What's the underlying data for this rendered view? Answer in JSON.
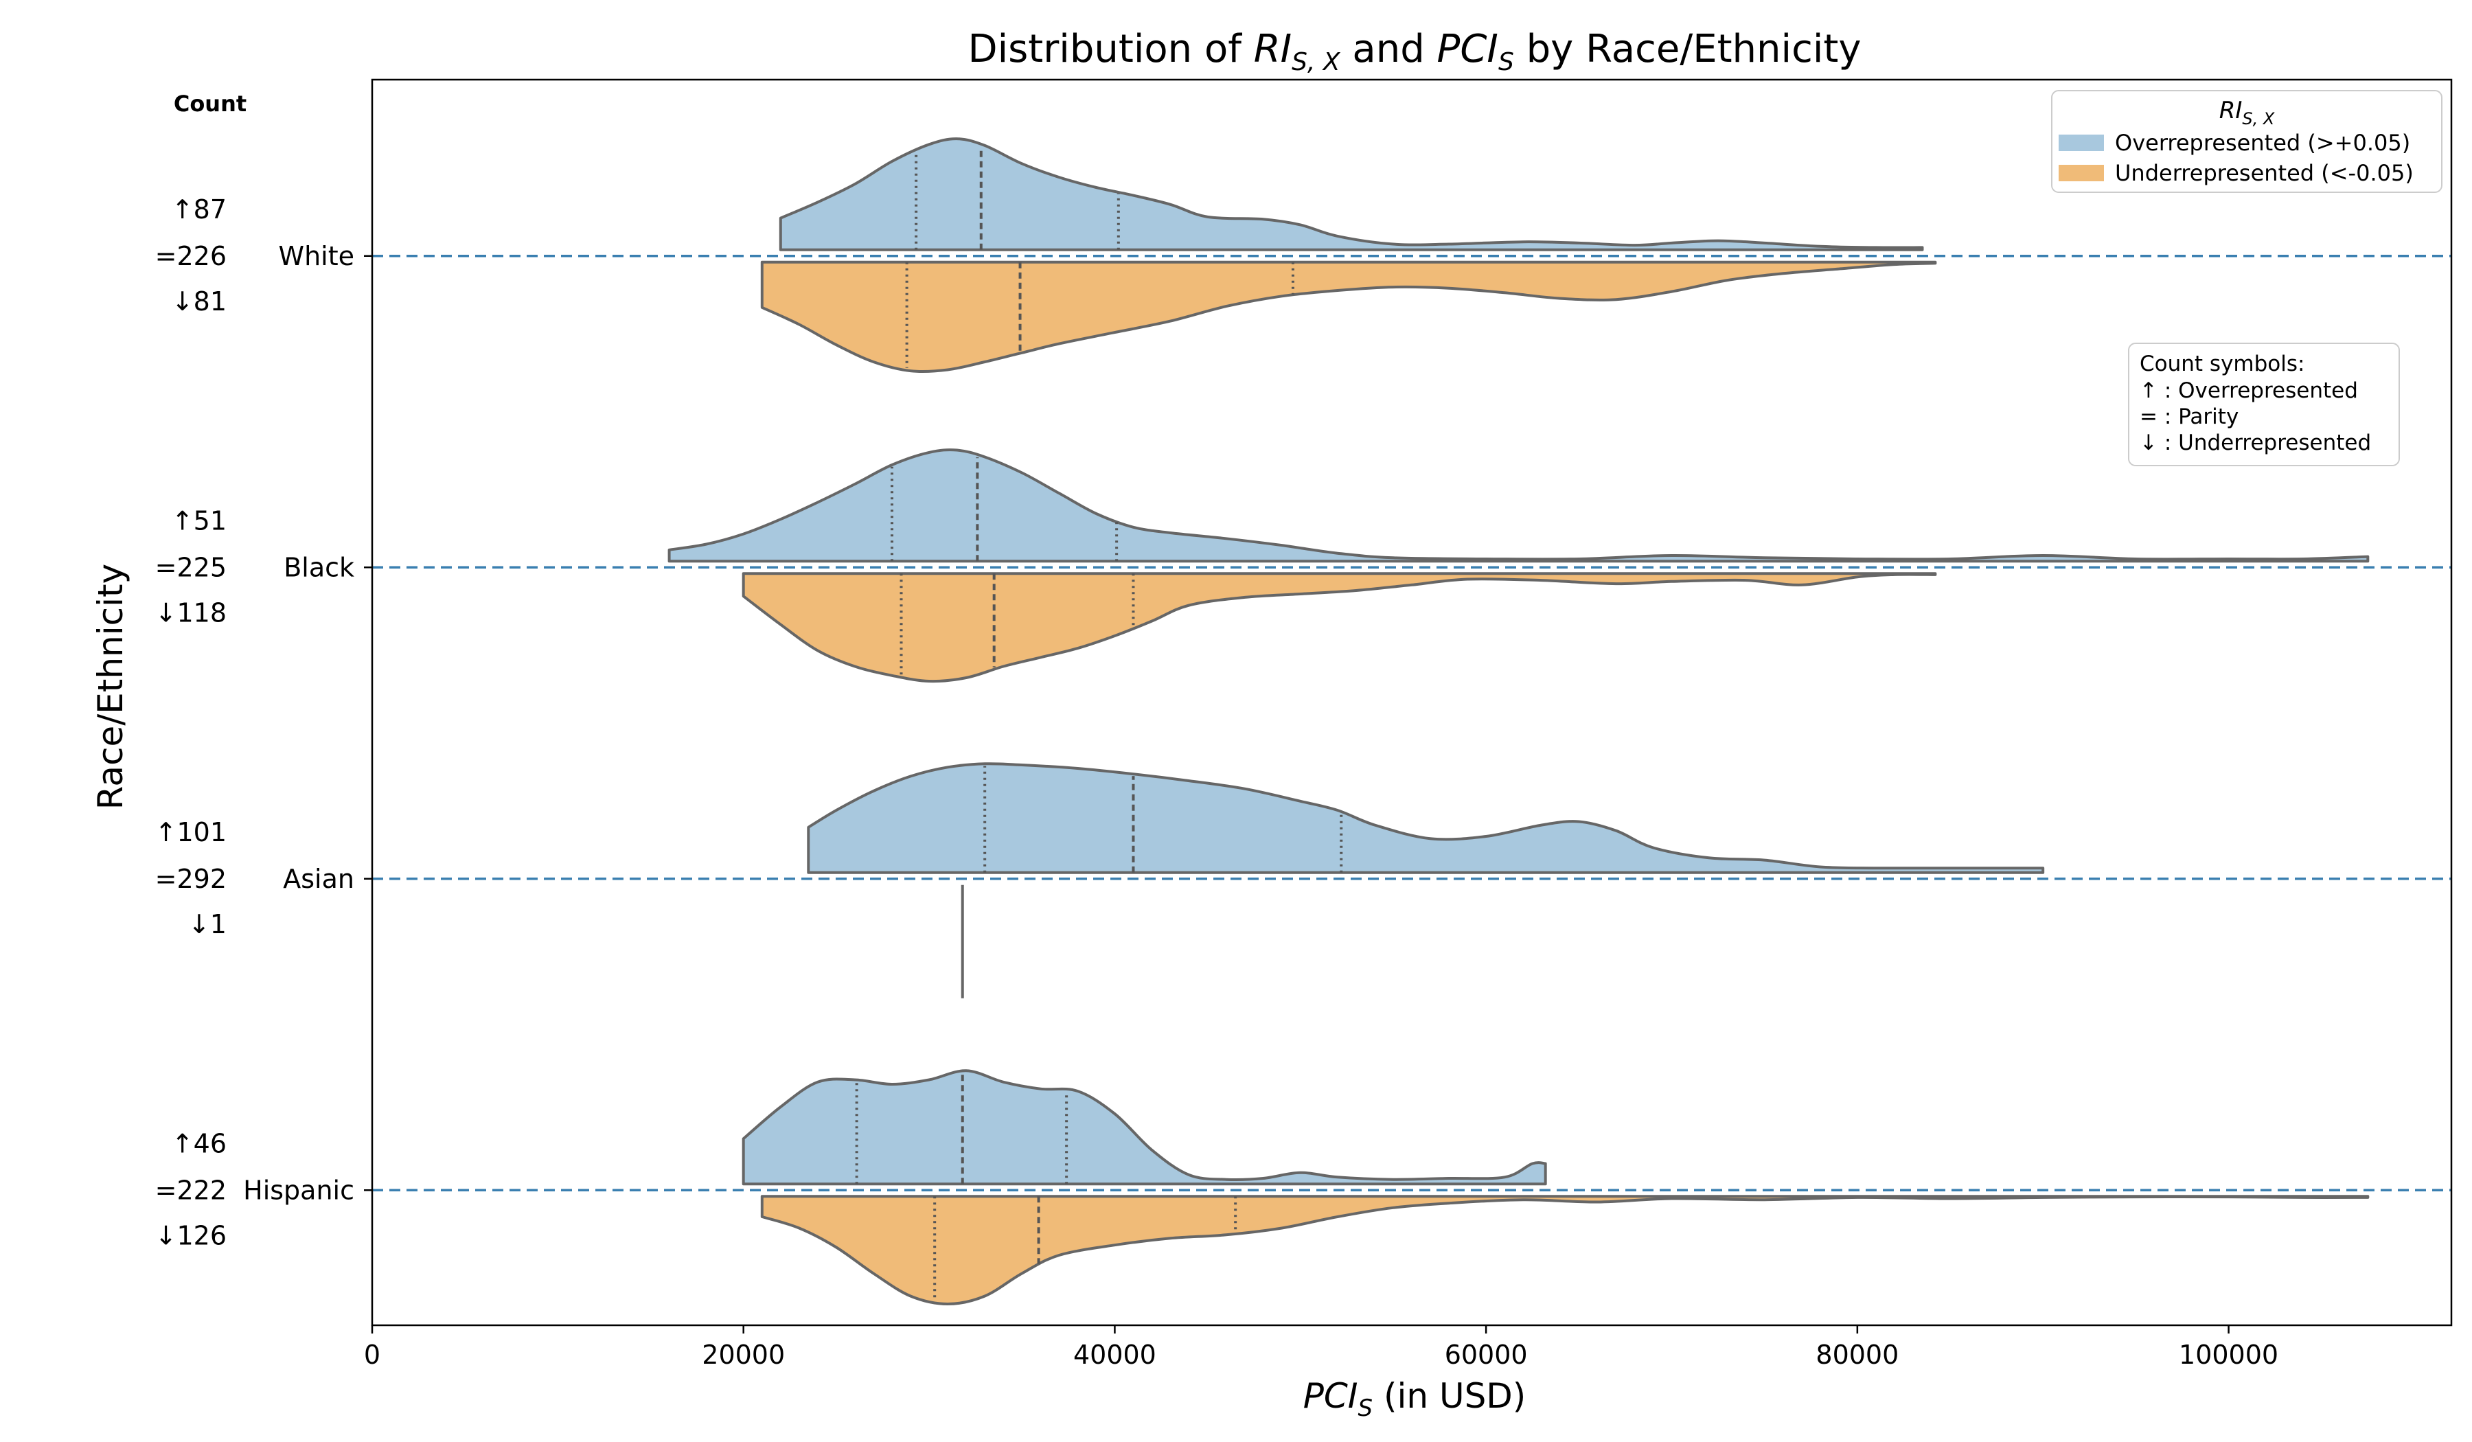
{
  "chart_data": {
    "type": "violin",
    "title": "Distribution of RI_S,X and PCI_S by Race/Ethnicity",
    "title_parts": {
      "prefix": "Distribution of ",
      "ri_base": "RI",
      "ri_sub": "S, X",
      "mid": " and ",
      "pci_base": "PCI",
      "pci_sub": "S",
      "suffix": " by Race/Ethnicity"
    },
    "xlabel": {
      "base": "PCI",
      "sub": "S",
      "rest": " (in USD)"
    },
    "ylabel": "Race/Ethnicity",
    "xlim": [
      0,
      112000
    ],
    "xticks": [
      "0",
      "20000",
      "40000",
      "60000",
      "80000",
      "100000"
    ],
    "count_header": "Count",
    "categories": [
      "White",
      "Black",
      "Asian",
      "Hispanic"
    ],
    "counts": [
      {
        "up": "↑87",
        "eq": "=226",
        "down": "↓81"
      },
      {
        "up": "↑51",
        "eq": "=225",
        "down": "↓118"
      },
      {
        "up": "↑101",
        "eq": "=292",
        "down": "↓1"
      },
      {
        "up": "↑46",
        "eq": "=222",
        "down": "↓126"
      }
    ],
    "legend": {
      "title_base": "RI",
      "title_sub": "S, X",
      "entries": [
        {
          "label": "Overrepresented (>+0.05)",
          "color": "#a8c8de"
        },
        {
          "label": "Underrepresented (<-0.05)",
          "color": "#f0bb78"
        }
      ],
      "placement": "top-right"
    },
    "count_legend": {
      "title": "Count symbols:",
      "lines": [
        "↑ : Overrepresented",
        "= : Parity",
        "↓ : Underrepresented"
      ],
      "placement": "right"
    },
    "series": [
      {
        "name": "Overrepresented (>+0.05)",
        "color": "#a8c8de",
        "side": "upper",
        "violins": [
          {
            "category": "White",
            "range": [
              22000,
              83500
            ],
            "profile": [
              [
                22000,
                0.28
              ],
              [
                24000,
                0.42
              ],
              [
                26000,
                0.58
              ],
              [
                28000,
                0.78
              ],
              [
                30000,
                0.93
              ],
              [
                31500,
                0.98
              ],
              [
                33000,
                0.92
              ],
              [
                35000,
                0.76
              ],
              [
                37000,
                0.64
              ],
              [
                39000,
                0.55
              ],
              [
                41000,
                0.48
              ],
              [
                43000,
                0.4
              ],
              [
                45000,
                0.29
              ],
              [
                48000,
                0.27
              ],
              [
                50000,
                0.22
              ],
              [
                52000,
                0.12
              ],
              [
                55000,
                0.05
              ],
              [
                58000,
                0.05
              ],
              [
                62000,
                0.07
              ],
              [
                65000,
                0.06
              ],
              [
                68000,
                0.04
              ],
              [
                70000,
                0.06
              ],
              [
                72500,
                0.08
              ],
              [
                75000,
                0.06
              ],
              [
                78000,
                0.03
              ],
              [
                81000,
                0.02
              ],
              [
                83500,
                0.02
              ]
            ],
            "quartiles": [
              29300,
              32800,
              40200
            ]
          },
          {
            "category": "Black",
            "range": [
              16000,
              107500
            ],
            "profile": [
              [
                16000,
                0.1
              ],
              [
                18000,
                0.15
              ],
              [
                20000,
                0.24
              ],
              [
                22000,
                0.37
              ],
              [
                24000,
                0.52
              ],
              [
                26000,
                0.68
              ],
              [
                28000,
                0.85
              ],
              [
                30000,
                0.96
              ],
              [
                31500,
                0.98
              ],
              [
                33000,
                0.92
              ],
              [
                35000,
                0.78
              ],
              [
                37000,
                0.6
              ],
              [
                39000,
                0.42
              ],
              [
                41000,
                0.3
              ],
              [
                43000,
                0.25
              ],
              [
                46000,
                0.2
              ],
              [
                49000,
                0.14
              ],
              [
                52000,
                0.07
              ],
              [
                55000,
                0.03
              ],
              [
                60000,
                0.02
              ],
              [
                65000,
                0.02
              ],
              [
                70000,
                0.05
              ],
              [
                75000,
                0.03
              ],
              [
                80000,
                0.02
              ],
              [
                85000,
                0.02
              ],
              [
                90000,
                0.05
              ],
              [
                95000,
                0.02
              ],
              [
                100000,
                0.02
              ],
              [
                104000,
                0.02
              ],
              [
                107500,
                0.04
              ]
            ],
            "quartiles": [
              28000,
              32600,
              40100
            ]
          },
          {
            "category": "Asian",
            "range": [
              23500,
              90000
            ],
            "profile": [
              [
                23500,
                0.4
              ],
              [
                25000,
                0.55
              ],
              [
                27000,
                0.72
              ],
              [
                29000,
                0.85
              ],
              [
                31000,
                0.93
              ],
              [
                33000,
                0.96
              ],
              [
                35000,
                0.95
              ],
              [
                38000,
                0.92
              ],
              [
                41000,
                0.87
              ],
              [
                44000,
                0.81
              ],
              [
                47000,
                0.74
              ],
              [
                50000,
                0.63
              ],
              [
                52000,
                0.55
              ],
              [
                54000,
                0.42
              ],
              [
                57000,
                0.3
              ],
              [
                60000,
                0.32
              ],
              [
                63000,
                0.42
              ],
              [
                65000,
                0.45
              ],
              [
                67000,
                0.37
              ],
              [
                69000,
                0.22
              ],
              [
                72000,
                0.13
              ],
              [
                75000,
                0.11
              ],
              [
                78000,
                0.05
              ],
              [
                81000,
                0.04
              ],
              [
                85000,
                0.04
              ],
              [
                90000,
                0.04
              ]
            ],
            "quartiles": [
              33000,
              41000,
              52200
            ]
          },
          {
            "category": "Hispanic",
            "range": [
              20000,
              63200
            ],
            "profile": [
              [
                20000,
                0.4
              ],
              [
                22000,
                0.68
              ],
              [
                24000,
                0.9
              ],
              [
                26000,
                0.92
              ],
              [
                28000,
                0.88
              ],
              [
                30000,
                0.92
              ],
              [
                32000,
                1.0
              ],
              [
                34000,
                0.9
              ],
              [
                36000,
                0.84
              ],
              [
                38000,
                0.82
              ],
              [
                40000,
                0.62
              ],
              [
                42000,
                0.3
              ],
              [
                44000,
                0.08
              ],
              [
                46000,
                0.04
              ],
              [
                48000,
                0.05
              ],
              [
                50000,
                0.1
              ],
              [
                52000,
                0.06
              ],
              [
                55000,
                0.04
              ],
              [
                58000,
                0.05
              ],
              [
                61000,
                0.06
              ],
              [
                62500,
                0.18
              ],
              [
                63200,
                0.18
              ]
            ],
            "quartiles": [
              26100,
              31800,
              37400
            ]
          }
        ]
      },
      {
        "name": "Underrepresented (<-0.05)",
        "color": "#f0bb78",
        "side": "lower",
        "violins": [
          {
            "category": "White",
            "range": [
              21000,
              84200
            ],
            "profile": [
              [
                21000,
                0.4
              ],
              [
                23000,
                0.55
              ],
              [
                25000,
                0.73
              ],
              [
                27000,
                0.88
              ],
              [
                29000,
                0.96
              ],
              [
                31000,
                0.95
              ],
              [
                33000,
                0.88
              ],
              [
                35000,
                0.8
              ],
              [
                37000,
                0.72
              ],
              [
                40000,
                0.62
              ],
              [
                43000,
                0.52
              ],
              [
                46000,
                0.39
              ],
              [
                49000,
                0.3
              ],
              [
                52000,
                0.25
              ],
              [
                55000,
                0.22
              ],
              [
                58000,
                0.23
              ],
              [
                61000,
                0.27
              ],
              [
                64000,
                0.32
              ],
              [
                67000,
                0.33
              ],
              [
                70000,
                0.26
              ],
              [
                73000,
                0.16
              ],
              [
                76000,
                0.1
              ],
              [
                79000,
                0.06
              ],
              [
                82000,
                0.02
              ],
              [
                84200,
                0.01
              ]
            ],
            "quartiles": [
              28800,
              34900,
              49600
            ]
          },
          {
            "category": "Black",
            "range": [
              20000,
              84200
            ],
            "profile": [
              [
                20000,
                0.2
              ],
              [
                22000,
                0.45
              ],
              [
                24000,
                0.68
              ],
              [
                26000,
                0.82
              ],
              [
                28000,
                0.9
              ],
              [
                30000,
                0.95
              ],
              [
                32000,
                0.92
              ],
              [
                34000,
                0.82
              ],
              [
                36000,
                0.74
              ],
              [
                38000,
                0.66
              ],
              [
                40000,
                0.55
              ],
              [
                42000,
                0.42
              ],
              [
                44000,
                0.28
              ],
              [
                47000,
                0.21
              ],
              [
                50000,
                0.18
              ],
              [
                53000,
                0.15
              ],
              [
                56000,
                0.1
              ],
              [
                59000,
                0.05
              ],
              [
                63000,
                0.06
              ],
              [
                67000,
                0.09
              ],
              [
                70000,
                0.07
              ],
              [
                74000,
                0.06
              ],
              [
                77000,
                0.1
              ],
              [
                80000,
                0.03
              ],
              [
                82000,
                0.01
              ],
              [
                84200,
                0.01
              ]
            ],
            "quartiles": [
              28500,
              33500,
              41000
            ]
          },
          {
            "category": "Asian",
            "range": [
              31800,
              31800
            ],
            "profile": [],
            "quartiles": [],
            "single_value": 31800
          },
          {
            "category": "Hispanic",
            "range": [
              21000,
              107500
            ],
            "profile": [
              [
                21000,
                0.18
              ],
              [
                23000,
                0.28
              ],
              [
                25000,
                0.45
              ],
              [
                27000,
                0.68
              ],
              [
                29000,
                0.88
              ],
              [
                31000,
                0.95
              ],
              [
                33000,
                0.88
              ],
              [
                35000,
                0.68
              ],
              [
                37000,
                0.52
              ],
              [
                40000,
                0.43
              ],
              [
                43000,
                0.37
              ],
              [
                46000,
                0.34
              ],
              [
                49000,
                0.28
              ],
              [
                52000,
                0.18
              ],
              [
                55000,
                0.1
              ],
              [
                58000,
                0.06
              ],
              [
                62000,
                0.03
              ],
              [
                66000,
                0.05
              ],
              [
                70000,
                0.02
              ],
              [
                75000,
                0.03
              ],
              [
                80000,
                0.01
              ],
              [
                85000,
                0.02
              ],
              [
                90000,
                0.01
              ],
              [
                95000,
                0.005
              ],
              [
                100000,
                0.005
              ],
              [
                104000,
                0.01
              ],
              [
                107500,
                0.01
              ]
            ],
            "quartiles": [
              30300,
              35900,
              46500
            ]
          }
        ]
      }
    ],
    "grid": false
  }
}
